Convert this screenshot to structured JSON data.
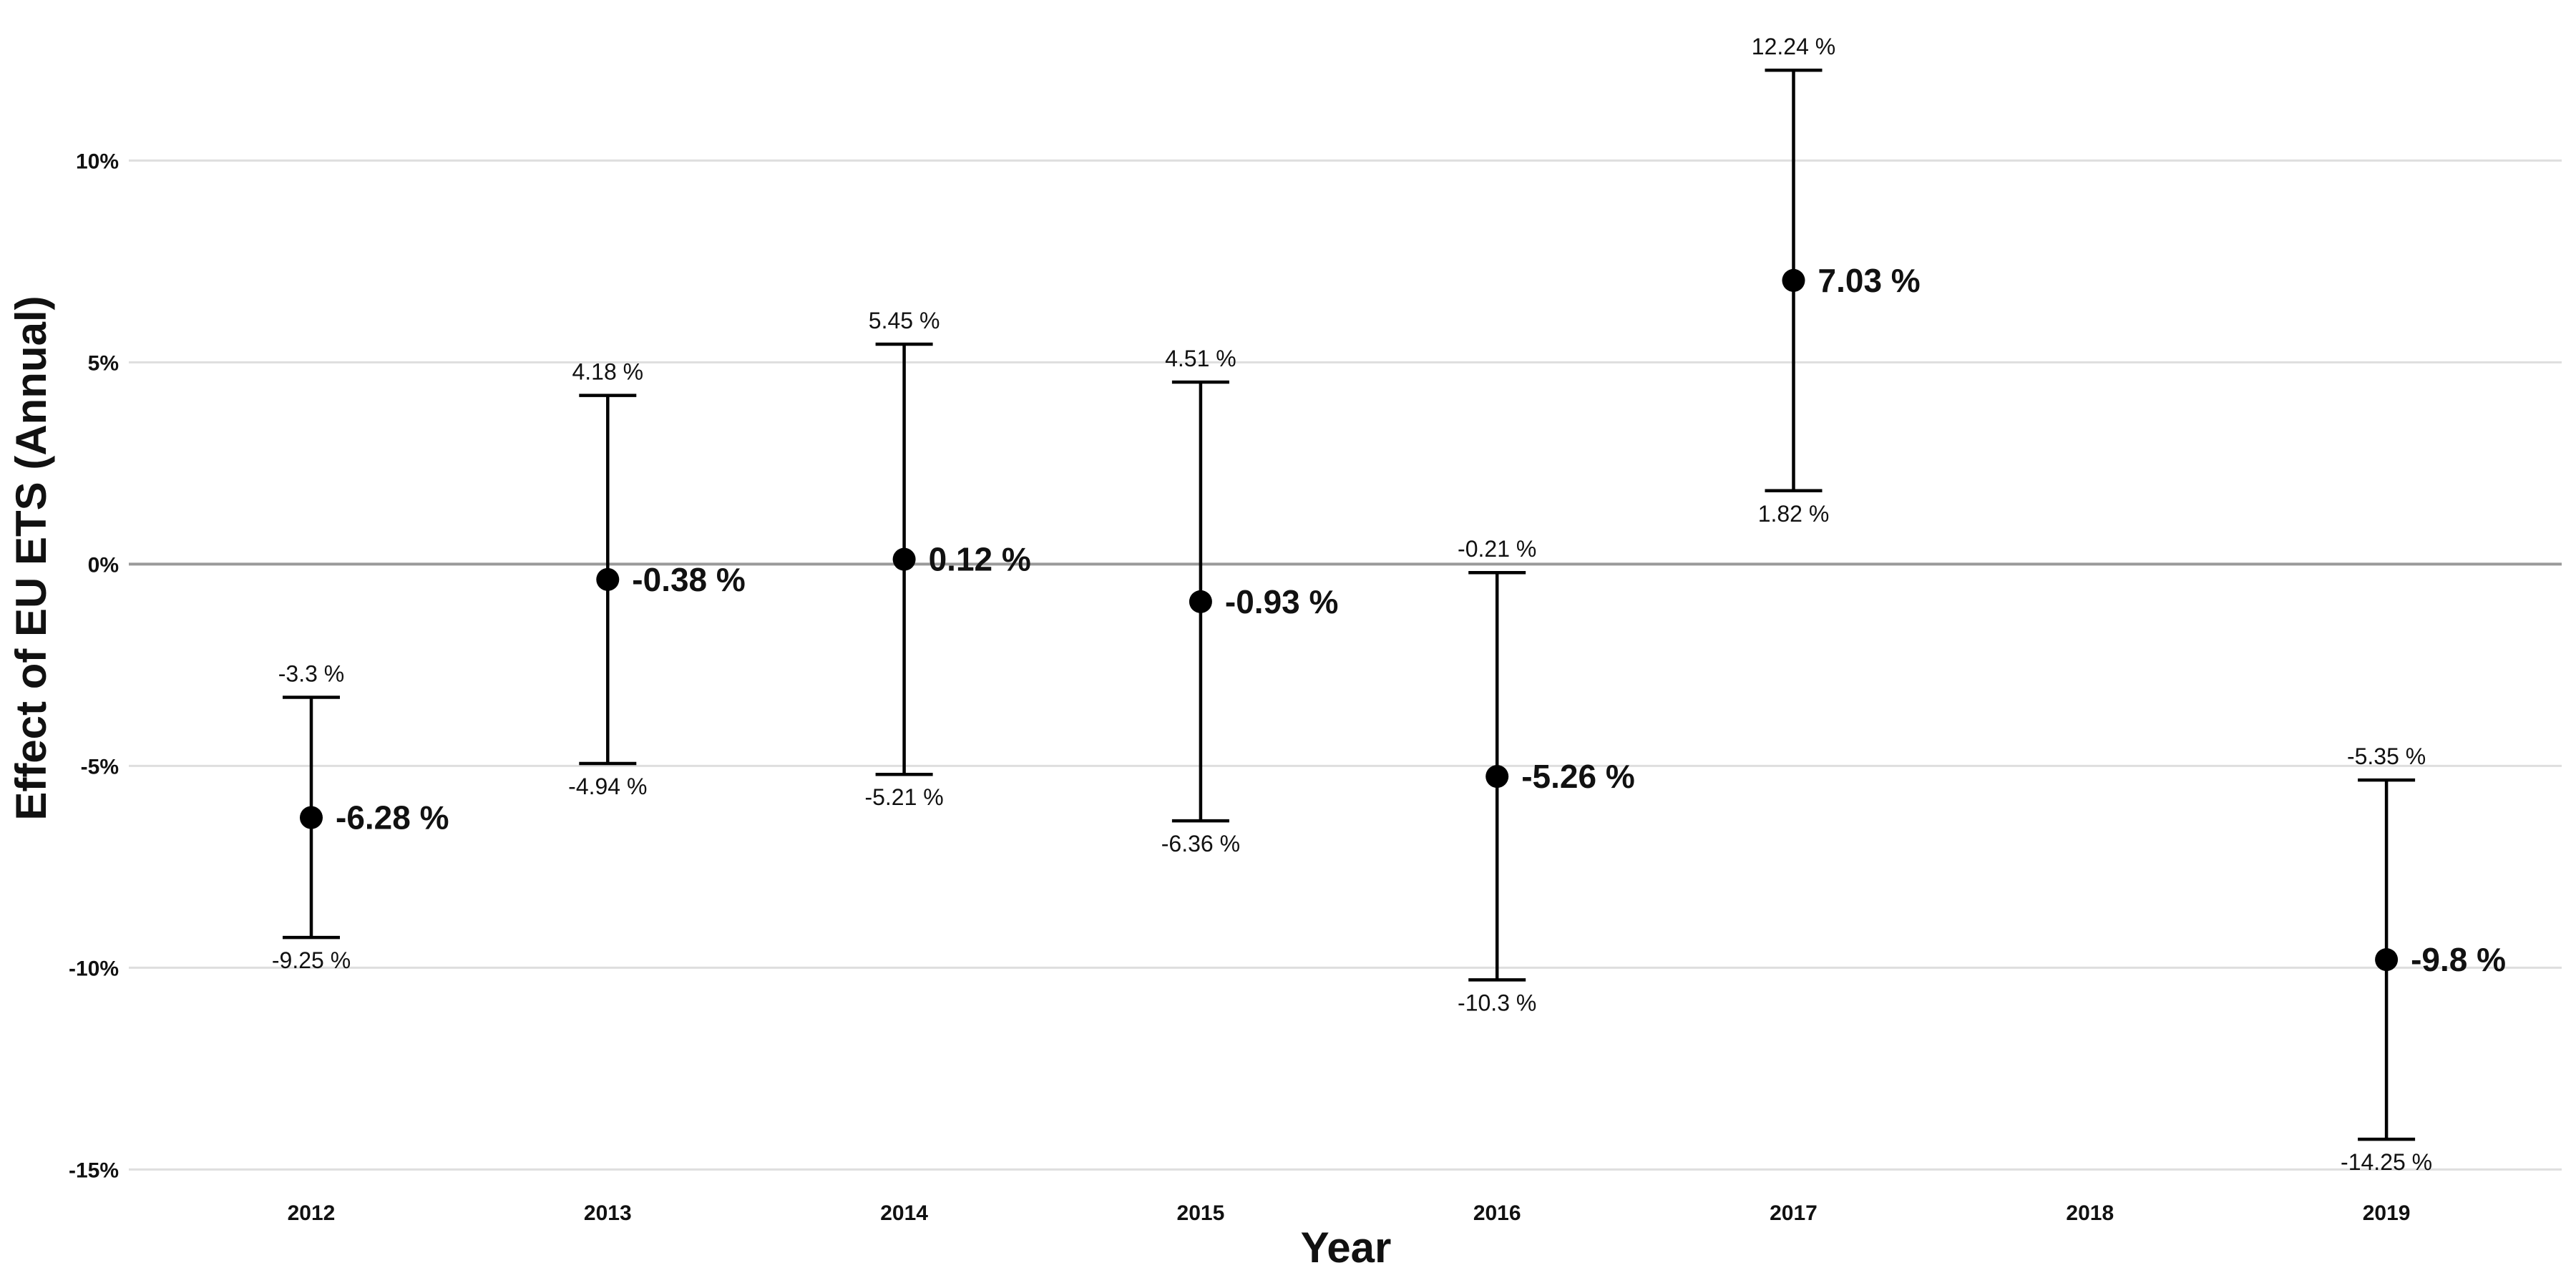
{
  "chart_data": {
    "type": "scatter",
    "xlabel": "Year",
    "ylabel": "Effect of EU ETS (Annual)",
    "categories": [
      "2012",
      "2013",
      "2014",
      "2015",
      "2016",
      "2017",
      "2018",
      "2019"
    ],
    "ylim": [
      -15.5,
      13.5
    ],
    "y_ticks": [
      10,
      5,
      0,
      -5,
      -10,
      -15
    ],
    "y_tick_labels": [
      "10%",
      "5%",
      "0%",
      "-5%",
      "-10%",
      "-15%"
    ],
    "grid": true,
    "reference_line": 0,
    "series": [
      {
        "points": [
          {
            "x": "2012",
            "estimate": -6.28,
            "lower": -9.25,
            "upper": -3.3,
            "estimate_label": "-6.28 %",
            "lower_label": "-9.25 %",
            "upper_label": "-3.3 %"
          },
          {
            "x": "2013",
            "estimate": -0.38,
            "lower": -4.94,
            "upper": 4.18,
            "estimate_label": "-0.38 %",
            "lower_label": "-4.94 %",
            "upper_label": "4.18 %"
          },
          {
            "x": "2014",
            "estimate": 0.12,
            "lower": -5.21,
            "upper": 5.45,
            "estimate_label": "0.12 %",
            "lower_label": "-5.21 %",
            "upper_label": "5.45 %"
          },
          {
            "x": "2015",
            "estimate": -0.93,
            "lower": -6.36,
            "upper": 4.51,
            "estimate_label": "-0.93 %",
            "lower_label": "-6.36 %",
            "upper_label": "4.51 %"
          },
          {
            "x": "2016",
            "estimate": -5.26,
            "lower": -10.3,
            "upper": -0.21,
            "estimate_label": "-5.26 %",
            "lower_label": "-10.3 %",
            "upper_label": "-0.21 %"
          },
          {
            "x": "2017",
            "estimate": 7.03,
            "lower": 1.82,
            "upper": 12.24,
            "estimate_label": "7.03 %",
            "lower_label": "1.82 %",
            "upper_label": "12.24 %"
          },
          {
            "x": "2019",
            "estimate": -9.8,
            "lower": -14.25,
            "upper": -5.35,
            "estimate_label": "-9.8 %",
            "lower_label": "-14.25 %",
            "upper_label": "-5.35 %"
          }
        ]
      }
    ]
  }
}
